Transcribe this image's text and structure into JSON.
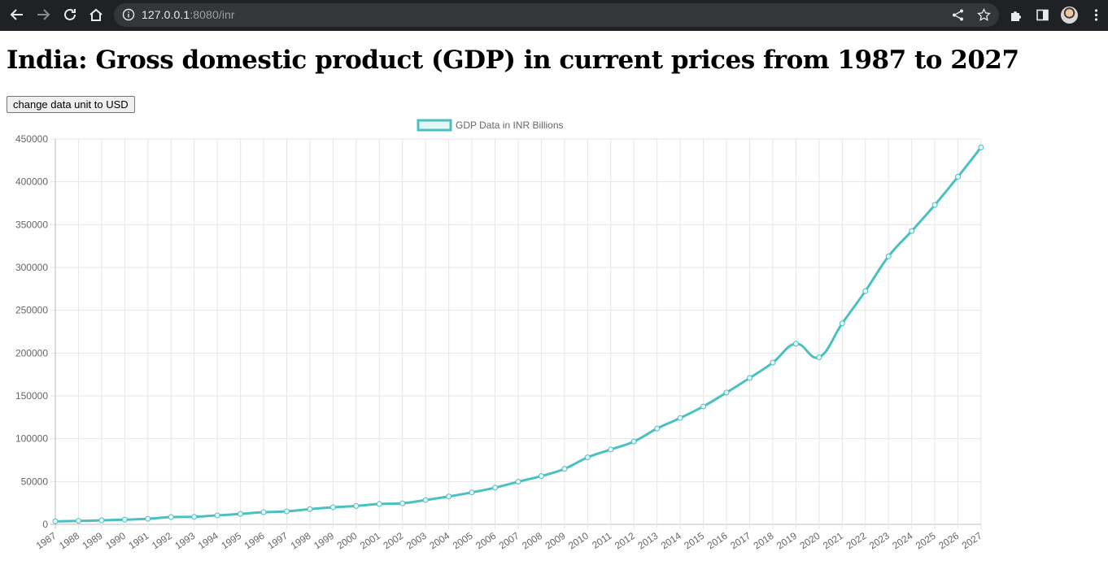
{
  "browser": {
    "url_host": "127.0.0.1",
    "url_rest": ":8080/inr"
  },
  "page": {
    "title": "India: Gross domestic product (GDP) in current prices from 1987 to 2027",
    "toggle_button_label": "change data unit to USD"
  },
  "chart_data": {
    "type": "line",
    "legend": "GDP Data in INR Billions",
    "legend_position": "top",
    "grid": true,
    "line_color": "#4bc0c0",
    "ylim": [
      0,
      450000
    ],
    "yticks": [
      0,
      50000,
      100000,
      150000,
      200000,
      250000,
      300000,
      350000,
      400000,
      450000
    ],
    "x": [
      1987,
      1988,
      1989,
      1990,
      1991,
      1992,
      1993,
      1994,
      1995,
      1996,
      1997,
      1998,
      1999,
      2000,
      2001,
      2002,
      2003,
      2004,
      2005,
      2006,
      2007,
      2008,
      2009,
      2010,
      2011,
      2012,
      2013,
      2014,
      2015,
      2016,
      2017,
      2018,
      2019,
      2020,
      2021,
      2022,
      2023,
      2024,
      2025,
      2026,
      2027
    ],
    "series": [
      {
        "name": "GDP Data in INR Billions",
        "values": [
          3500,
          4000,
          4700,
          5500,
          6500,
          8500,
          8800,
          10500,
          12200,
          14200,
          15200,
          17800,
          19900,
          21500,
          23800,
          24600,
          28400,
          32500,
          37300,
          42800,
          49800,
          56400,
          64800,
          78200,
          87400,
          96700,
          111900,
          124200,
          137700,
          153900,
          170900,
          188900,
          211000,
          195100,
          234700,
          272400,
          313000,
          342500,
          373000,
          405900,
          440300
        ]
      }
    ]
  }
}
